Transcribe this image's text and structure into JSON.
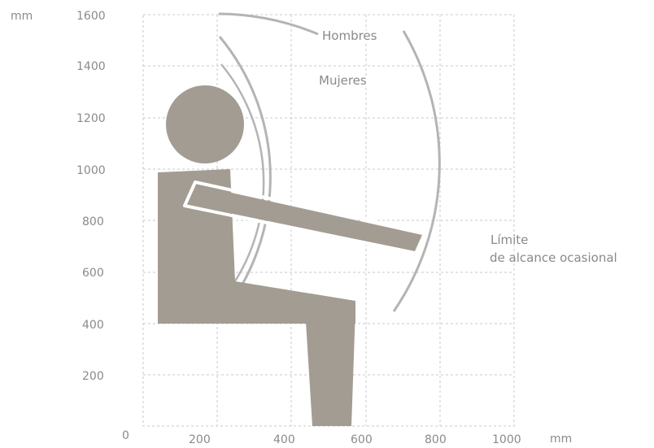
{
  "axes": {
    "x_unit": "mm",
    "y_unit": "mm",
    "origin": "0",
    "x_ticks": [
      "200",
      "400",
      "600",
      "800",
      "1000"
    ],
    "y_ticks": [
      "1600",
      "1400",
      "1200",
      "1000",
      "800",
      "600",
      "400",
      "200"
    ]
  },
  "labels": {
    "men": "Hombres",
    "women": "Mujeres",
    "occasional_line1": "Límite",
    "occasional_line2": "de alcance ocasional"
  },
  "colors": {
    "figure": "#a39c93",
    "arcs": "#b4b4b4",
    "grid": "#c8c8c8",
    "text": "#8a8a8a"
  }
}
